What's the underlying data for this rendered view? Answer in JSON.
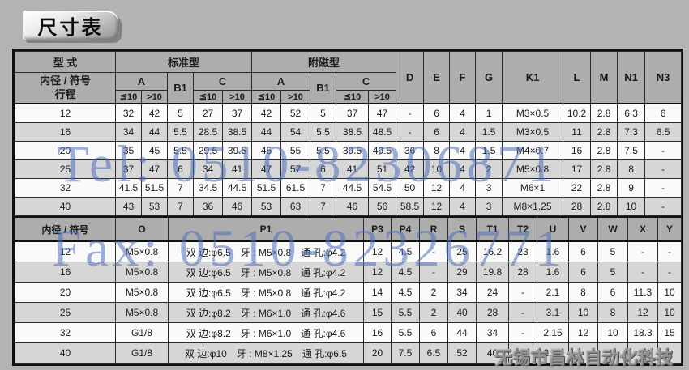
{
  "page_title": "尺寸表",
  "accent_colors": {
    "watermark_blue": "#4e6dba",
    "watermark_gray": "#969696"
  },
  "watermarks": {
    "tel": "Tel: 0510-82306871",
    "fax": "Fax: 0510-82326771",
    "company": "无锡市昌林自动化科技"
  },
  "table": {
    "section1": {
      "header": {
        "type_label": "型 式",
        "bore_label": "内径 / 符号",
        "stroke_label": "行程",
        "standard_label": "标准型",
        "magnetic_label": "附磁型",
        "col_a": "A",
        "col_b1": "B1",
        "col_c": "C",
        "le10": "≦10",
        "gt10": ">10",
        "right_cols": [
          "D",
          "E",
          "F",
          "G",
          "K1",
          "L",
          "M",
          "N1",
          "N3"
        ]
      },
      "rows": [
        [
          "12",
          "32",
          "42",
          "5",
          "27",
          "37",
          "42",
          "52",
          "5",
          "37",
          "47",
          "-",
          "6",
          "4",
          "1",
          "M3×0.5",
          "10.2",
          "2.8",
          "6.3",
          "6"
        ],
        [
          "16",
          "34",
          "44",
          "5.5",
          "28.5",
          "38.5",
          "44",
          "54",
          "5.5",
          "38.5",
          "48.5",
          "-",
          "6",
          "4",
          "1.5",
          "M3×0.5",
          "11",
          "2.8",
          "7.3",
          "6.5"
        ],
        [
          "20",
          "35",
          "45",
          "5.5",
          "29.5",
          "39.5",
          "45",
          "55",
          "5.5",
          "39.5",
          "49.5",
          "36",
          "8",
          "4",
          "1.5",
          "M4×0.7",
          "16",
          "2.8",
          "7.5",
          "-"
        ],
        [
          "25",
          "37",
          "47",
          "6",
          "34",
          "41",
          "47",
          "57",
          "6",
          "41",
          "51",
          "42",
          "10",
          "4",
          "2",
          "M5×0.8",
          "17",
          "2.8",
          "8",
          "-"
        ],
        [
          "32",
          "41.5",
          "51.5",
          "7",
          "34.5",
          "44.5",
          "51.5",
          "61.5",
          "7",
          "44.5",
          "54.5",
          "50",
          "12",
          "4",
          "3",
          "M6×1",
          "22",
          "2.8",
          "9",
          "-"
        ],
        [
          "40",
          "43",
          "53",
          "7",
          "36",
          "46",
          "53",
          "63",
          "7",
          "46",
          "56",
          "58.5",
          "12",
          "4",
          "3",
          "M8×1.25",
          "28",
          "2.8",
          "10",
          "-"
        ]
      ]
    },
    "section2": {
      "header": {
        "bore_label": "内径 / 符号",
        "cols": [
          "O",
          "P1",
          "P3",
          "P4",
          "R",
          "S",
          "T1",
          "T2",
          "U",
          "V",
          "W",
          "X",
          "Y"
        ]
      },
      "rows": [
        [
          "12",
          "M5×0.8",
          "双 边:φ6.5　牙 : M5×0.8　通 孔:φ4.2",
          "12",
          "4.5",
          "-",
          "25",
          "16.2",
          "23",
          "1.6",
          "6",
          "5",
          "-",
          "-"
        ],
        [
          "16",
          "M5×0.8",
          "双 边:φ6.5　牙 : M5×0.8　通 孔:φ4.2",
          "12",
          "4.5",
          "-",
          "29",
          "19.8",
          "28",
          "1.6",
          "6",
          "5",
          "-",
          "-"
        ],
        [
          "20",
          "M5×0.8",
          "双 边:φ6.5　牙 : M5×0.8　通 孔:φ4.2",
          "14",
          "4.5",
          "2",
          "34",
          "24",
          "-",
          "2.1",
          "8",
          "6",
          "11.3",
          "10"
        ],
        [
          "25",
          "M5×0.8",
          "双 边:φ8.2　牙 : M6×1.0　通 孔:φ4.6",
          "15",
          "5.5",
          "2",
          "40",
          "28",
          "-",
          "3.1",
          "10",
          "8",
          "12",
          "10"
        ],
        [
          "32",
          "G1/8",
          "双 边:φ8.2　牙 : M6×1.0　通 孔:φ4.6",
          "16",
          "5.5",
          "6",
          "44",
          "34",
          "-",
          "2.15",
          "12",
          "10",
          "18.3",
          "15"
        ],
        [
          "40",
          "G1/8",
          "双 边:φ10　牙 : M8×1.25　通 孔:φ6.5",
          "20",
          "7.5",
          "6.5",
          "52",
          "40",
          "-",
          "2.25",
          "",
          "",
          "",
          ""
        ]
      ]
    }
  }
}
